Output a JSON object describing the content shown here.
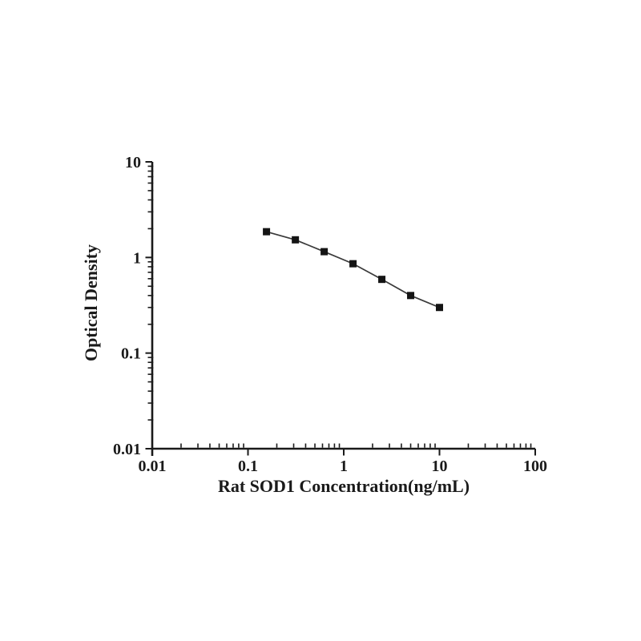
{
  "page": {
    "background_color": "#ffffff"
  },
  "chart_data": {
    "type": "line",
    "title": "",
    "xlabel": "Rat SOD1 Concentration(ng/mL)",
    "ylabel": "Optical Density",
    "xscale": "log",
    "yscale": "log",
    "xlim": [
      0.01,
      100
    ],
    "ylim": [
      0.01,
      10
    ],
    "grid": false,
    "legend": null,
    "x": [
      0.156,
      0.3125,
      0.625,
      1.25,
      2.5,
      5,
      10
    ],
    "y": [
      1.86,
      1.53,
      1.15,
      0.86,
      0.59,
      0.4,
      0.3
    ],
    "x_major_ticks": [
      0.01,
      0.1,
      1,
      10,
      100
    ],
    "x_tick_labels": [
      "0.01",
      "0.1",
      "1",
      "10",
      "100"
    ],
    "y_major_ticks": [
      0.01,
      0.1,
      1,
      10
    ],
    "y_tick_labels": [
      "0.01",
      "0.1",
      "1",
      "10"
    ],
    "marker": "filled-square",
    "marker_size_px": 9,
    "marker_color": "#141414",
    "line_color": "#3a3a3a",
    "axis_color": "#1a1a1a",
    "tick_label_color": "#1a1a1a"
  }
}
